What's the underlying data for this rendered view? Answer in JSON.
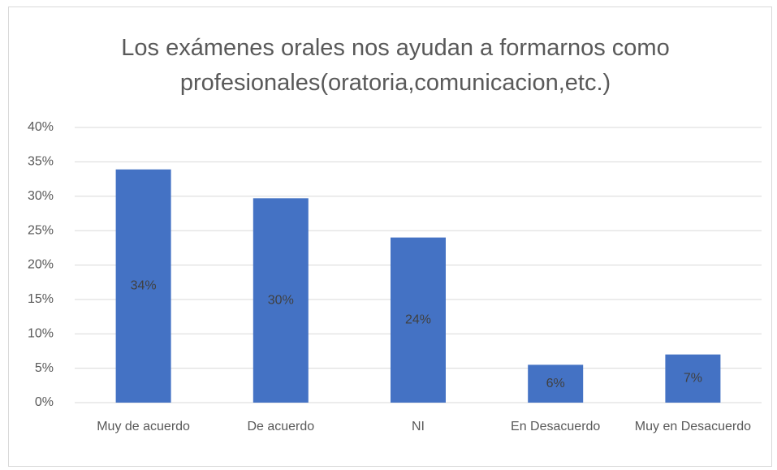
{
  "chart_data": {
    "type": "bar",
    "title": "Los exámenes orales nos ayudan a formarnos como profesionales(oratoria,comunicacion,etc.)",
    "categories": [
      "Muy de acuerdo",
      "De acuerdo",
      "NI",
      "En Desacuerdo",
      "Muy en Desacuerdo"
    ],
    "values": [
      33.9,
      29.7,
      24.0,
      5.5,
      7.0
    ],
    "value_labels": [
      "34%",
      "30%",
      "24%",
      "6%",
      "7%"
    ],
    "color": "#4472c4",
    "ylim": [
      0,
      40
    ],
    "yticks": [
      {
        "value": 0,
        "label": "0%"
      },
      {
        "value": 5,
        "label": "5%"
      },
      {
        "value": 10,
        "label": "10%"
      },
      {
        "value": 15,
        "label": "15%"
      },
      {
        "value": 20,
        "label": "20%"
      },
      {
        "value": 25,
        "label": "25%"
      },
      {
        "value": 30,
        "label": "30%"
      },
      {
        "value": 35,
        "label": "35%"
      },
      {
        "value": 40,
        "label": "40%"
      }
    ],
    "grid": true
  }
}
